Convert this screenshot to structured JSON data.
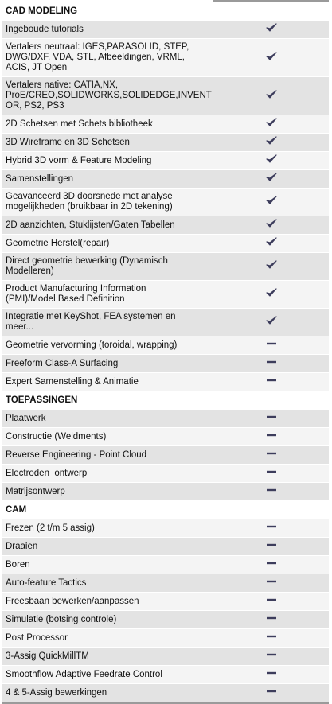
{
  "sections": [
    {
      "title": "CAD MODELING",
      "rows": [
        {
          "feature": "Ingeboude tutorials",
          "included": true
        },
        {
          "feature": "Vertalers neutraal: IGES,PARASOLID, STEP,\nDWG/DXF, VDA, STL, Afbeeldingen, VRML,\nACIS, JT Open",
          "included": true
        },
        {
          "feature": "Vertalers native: CATIA,NX,\nProE/CREO,SOLIDWORKS,SOLIDEDGE,INVENT\nOR, PS2, PS3",
          "included": true
        },
        {
          "feature": "2D Schetsen met Schets bibliotheek",
          "included": true
        },
        {
          "feature": "3D Wireframe en 3D Schetsen",
          "included": true
        },
        {
          "feature": "Hybrid 3D vorm & Feature Modeling",
          "included": true
        },
        {
          "feature": "Samenstellingen",
          "included": true
        },
        {
          "feature": "Geavanceerd 3D doorsnede met analyse\nmogelijkheden (bruikbaar in 2D tekening)",
          "included": true
        },
        {
          "feature": "2D aanzichten, Stuklijsten/Gaten Tabellen",
          "included": true
        },
        {
          "feature": "Geometrie Herstel(repair)",
          "included": true
        },
        {
          "feature": "Direct geometrie bewerking (Dynamisch\nModelleren)",
          "included": true
        },
        {
          "feature": "Product Manufacturing Information\n(PMI)/Model Based Definition",
          "included": true
        },
        {
          "feature": "Integratie met KeyShot, FEA systemen en\nmeer...",
          "included": true
        },
        {
          "feature": "Geometrie vervorming (toroidal, wrapping)",
          "included": false
        },
        {
          "feature": "Freeform Class-A Surfacing",
          "included": false
        },
        {
          "feature": "Expert Samenstelling & Animatie",
          "included": false
        }
      ]
    },
    {
      "title": "TOEPASSINGEN",
      "rows": [
        {
          "feature": "Plaatwerk",
          "included": false
        },
        {
          "feature": "Constructie (Weldments)",
          "included": false
        },
        {
          "feature": "Reverse Engineering - Point Cloud",
          "included": false
        },
        {
          "feature": "Electroden  ontwerp",
          "included": false
        },
        {
          "feature": "Matrijsontwerp",
          "included": false
        }
      ]
    },
    {
      "title": "CAM",
      "rows": [
        {
          "feature": "Frezen (2 t/m 5 assig)",
          "included": false
        },
        {
          "feature": "Draaien",
          "included": false
        },
        {
          "feature": "Boren",
          "included": false
        },
        {
          "feature": "Auto-feature Tactics",
          "included": false
        },
        {
          "feature": "Freesbaan bewerken/aanpassen",
          "included": false
        },
        {
          "feature": "Simulatie (botsing controle)",
          "included": false
        },
        {
          "feature": "Post Processor",
          "included": false
        },
        {
          "feature": "3-Assig QuickMillTM",
          "included": false
        },
        {
          "feature": "Smoothflow Adaptive Feedrate Control",
          "included": false
        },
        {
          "feature": "4 & 5-Assig bewerkingen",
          "included": false
        }
      ]
    }
  ]
}
